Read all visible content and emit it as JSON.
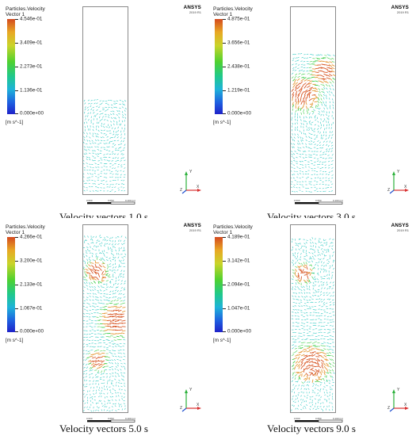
{
  "colors": {
    "domain_border": "#8a8a8a",
    "vector_cyan": "#2ec9c2",
    "vector_green": "#3fcf4a",
    "vector_orange": "#e59a3a",
    "vector_red": "#d85a2a",
    "axis_x": "#d83030",
    "axis_y": "#2ab03a",
    "axis_z": "#2050d0"
  },
  "panels": [
    {
      "legend": {
        "title": "Particles.Velocity",
        "subtitle": "Vector 1",
        "labels": [
          "4.546e-01",
          "3.409e-01",
          "2.273e-01",
          "1.136e-01",
          "0.000e+00"
        ],
        "unit": "[m s^-1]"
      },
      "brand": "ANSYS",
      "version": "2019 R1",
      "caption": "Velocity vectors 1.0 s"
    },
    {
      "legend": {
        "title": "Particles.Velocity",
        "subtitle": "Vector 1",
        "labels": [
          "4.875e-01",
          "3.656e-01",
          "2.438e-01",
          "1.219e-01",
          "0.000e+00"
        ],
        "unit": "[m s^-1]"
      },
      "brand": "ANSYS",
      "version": "2019 R1",
      "caption": "Velocity vectors 3.0 s"
    },
    {
      "legend": {
        "title": "Particles.Velocity",
        "subtitle": "Vector 1",
        "labels": [
          "4.266e-01",
          "3.200e-01",
          "2.133e-01",
          "1.067e-01",
          "0.000e+00"
        ],
        "unit": "[m s^-1]"
      },
      "brand": "ANSYS",
      "version": "2019 R1",
      "caption": "Velocity vectors 5.0 s"
    },
    {
      "legend": {
        "title": "Particles.Velocity",
        "subtitle": "Vector 1",
        "labels": [
          "4.189e-01",
          "3.142e-01",
          "2.094e-01",
          "1.047e-01",
          "0.000e+00"
        ],
        "unit": "[m s^-1]"
      },
      "brand": "ANSYS",
      "version": "2019 R1",
      "caption": "Velocity vectors 9.0 s"
    }
  ],
  "scale_bar": {
    "left": "0.000",
    "mid": "0.050",
    "right": "0.100 (m)"
  },
  "axes_labels": {
    "y": "Y",
    "x": "X",
    "z": "Z"
  }
}
